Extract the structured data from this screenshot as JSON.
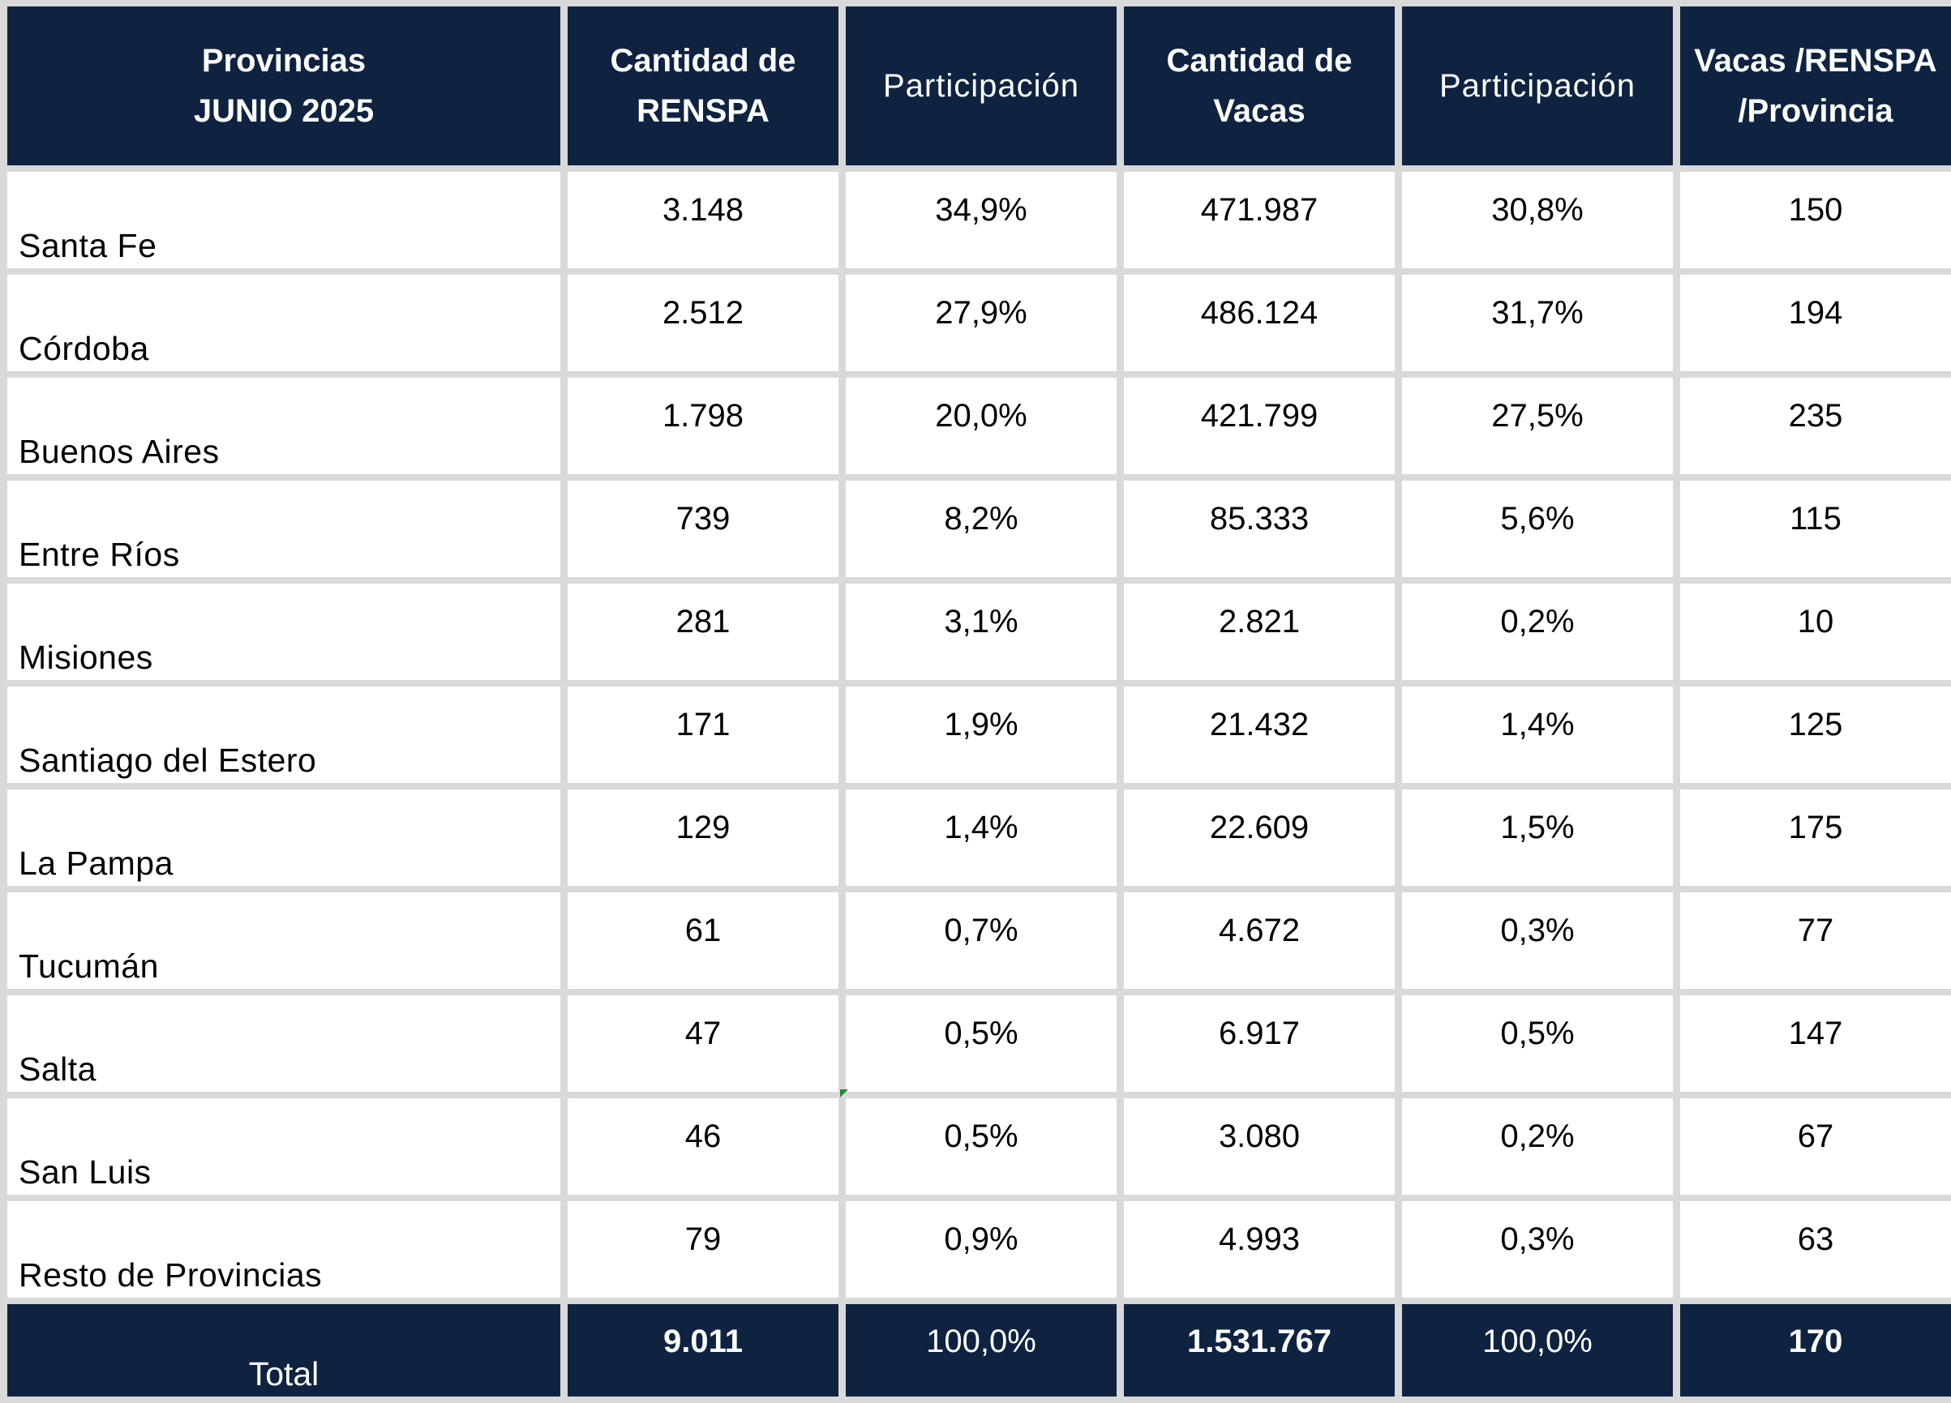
{
  "table": {
    "headers": {
      "provincias_line1": "Provincias",
      "provincias_line2": "JUNIO 2025",
      "renspa_line1": "Cantidad de",
      "renspa_line2": "RENSPA",
      "participacion_1": "Participación",
      "vacas_line1": "Cantidad de",
      "vacas_line2": "Vacas",
      "participacion_2": "Participación",
      "ratio_line1": "Vacas /RENSPA",
      "ratio_line2": "/Provincia"
    },
    "rows": [
      {
        "provincia": "Santa Fe",
        "renspa": "3.148",
        "part_renspa": "34,9%",
        "vacas": "471.987",
        "part_vacas": "30,8%",
        "ratio": "150"
      },
      {
        "provincia": "Córdoba",
        "renspa": "2.512",
        "part_renspa": "27,9%",
        "vacas": "486.124",
        "part_vacas": "31,7%",
        "ratio": "194"
      },
      {
        "provincia": "Buenos Aires",
        "renspa": "1.798",
        "part_renspa": "20,0%",
        "vacas": "421.799",
        "part_vacas": "27,5%",
        "ratio": "235"
      },
      {
        "provincia": "Entre Ríos",
        "renspa": "739",
        "part_renspa": "8,2%",
        "vacas": "85.333",
        "part_vacas": "5,6%",
        "ratio": "115"
      },
      {
        "provincia": "Misiones",
        "renspa": "281",
        "part_renspa": "3,1%",
        "vacas": "2.821",
        "part_vacas": "0,2%",
        "ratio": "10"
      },
      {
        "provincia": "Santiago del Estero",
        "renspa": "171",
        "part_renspa": "1,9%",
        "vacas": "21.432",
        "part_vacas": "1,4%",
        "ratio": "125"
      },
      {
        "provincia": "La Pampa",
        "renspa": "129",
        "part_renspa": "1,4%",
        "vacas": "22.609",
        "part_vacas": "1,5%",
        "ratio": "175"
      },
      {
        "provincia": "Tucumán",
        "renspa": "61",
        "part_renspa": "0,7%",
        "vacas": "4.672",
        "part_vacas": "0,3%",
        "ratio": "77"
      },
      {
        "provincia": "Salta",
        "renspa": "47",
        "part_renspa": "0,5%",
        "vacas": "6.917",
        "part_vacas": "0,5%",
        "ratio": "147"
      },
      {
        "provincia": "San Luis",
        "renspa": "46",
        "part_renspa": "0,5%",
        "vacas": "3.080",
        "part_vacas": "0,2%",
        "ratio": "67"
      },
      {
        "provincia": "Resto de Provincias",
        "renspa": "79",
        "part_renspa": "0,9%",
        "vacas": "4.993",
        "part_vacas": "0,3%",
        "ratio": "63"
      }
    ],
    "total": {
      "label": "Total",
      "renspa": "9.011",
      "part_renspa": "100,0%",
      "vacas": "1.531.767",
      "part_vacas": "100,0%",
      "ratio": "170"
    }
  },
  "colors": {
    "header_bg": "#0f2341",
    "header_text": "#ffffff",
    "grid_bg": "#d9d9d9",
    "cell_bg": "#ffffff"
  }
}
